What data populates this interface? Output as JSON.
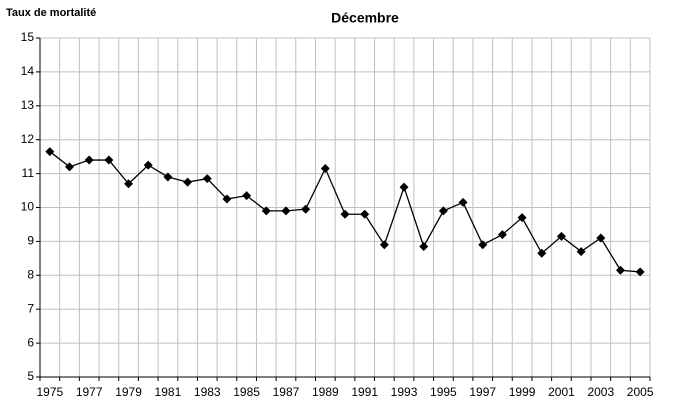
{
  "chart_data": {
    "type": "line",
    "title": "Décembre",
    "y_label": "Taux de mortalité",
    "categories": [
      "1975",
      null,
      "1977",
      null,
      "1979",
      null,
      "1981",
      null,
      "1983",
      null,
      "1985",
      null,
      "1987",
      null,
      "1989",
      null,
      "1991",
      null,
      "1993",
      null,
      "1995",
      null,
      "1997",
      null,
      "1999",
      null,
      "2001",
      null,
      "2003",
      null,
      "2005"
    ],
    "values": [
      11.65,
      11.2,
      11.4,
      11.4,
      10.7,
      11.25,
      10.9,
      10.75,
      10.85,
      10.25,
      10.35,
      9.9,
      9.9,
      9.95,
      11.15,
      9.8,
      9.8,
      8.9,
      10.6,
      8.85,
      9.9,
      10.15,
      8.9,
      9.2,
      9.7,
      8.65,
      9.15,
      8.7,
      9.1,
      8.15,
      8.1
    ],
    "color": "#000000",
    "ylim": [
      5,
      15
    ],
    "yticks": [
      5,
      6,
      7,
      8,
      9,
      10,
      11,
      12,
      13,
      14,
      15
    ],
    "grid": true
  }
}
